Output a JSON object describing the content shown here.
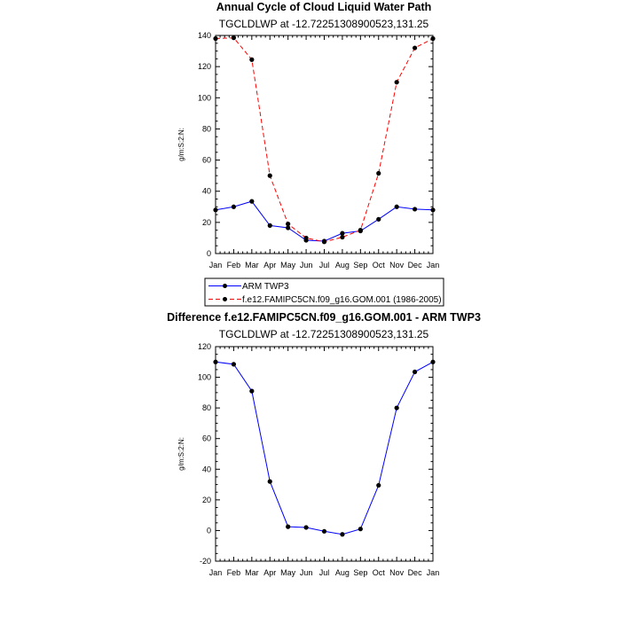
{
  "colors": {
    "series_1": "#0000ff",
    "series_2": "#ff0000",
    "axes": "#000000",
    "markers": "#000000"
  },
  "legend": {
    "entries": [
      "ARM TWP3",
      "f.e12.FAMIPC5CN.f09_g16.GOM.001 (1986-2005)"
    ]
  },
  "chart_data": [
    {
      "type": "line",
      "title": "Annual Cycle of Cloud Liquid Water Path",
      "subtitle": "TGCLDLWP at -12.72251308900523,131.25",
      "xlabel": "",
      "ylabel": "g/m:S:2:N:",
      "categories": [
        "Jan",
        "Feb",
        "Mar",
        "Apr",
        "May",
        "Jun",
        "Jul",
        "Aug",
        "Sep",
        "Oct",
        "Nov",
        "Dec",
        "Jan"
      ],
      "ylim": [
        0,
        140
      ],
      "yticks": [
        "0",
        "20",
        "40",
        "60",
        "80",
        "100",
        "120",
        "140"
      ],
      "grid": false,
      "legend_position": "below",
      "series": [
        {
          "name": "ARM TWP3",
          "style": "solid",
          "values": [
            28,
            30,
            33.5,
            18,
            16.5,
            8.5,
            8,
            13,
            14.5,
            22,
            30,
            28.5,
            28
          ]
        },
        {
          "name": "f.e12.FAMIPC5CN.f09_g16.GOM.001 (1986-2005)",
          "style": "dashed",
          "values": [
            138,
            138.5,
            124.5,
            50,
            19,
            10,
            7.5,
            10.5,
            15,
            51.5,
            110,
            132,
            138
          ]
        }
      ]
    },
    {
      "type": "line",
      "title": "Difference f.e12.FAMIPC5CN.f09_g16.GOM.001 - ARM TWP3",
      "subtitle": "TGCLDLWP at -12.72251308900523,131.25",
      "xlabel": "",
      "ylabel": "g/m:S:2:N:",
      "categories": [
        "Jan",
        "Feb",
        "Mar",
        "Apr",
        "May",
        "Jun",
        "Jul",
        "Aug",
        "Sep",
        "Oct",
        "Nov",
        "Dec",
        "Jan"
      ],
      "ylim": [
        -20,
        120
      ],
      "yticks": [
        "-20",
        "0",
        "20",
        "40",
        "60",
        "80",
        "100",
        "120"
      ],
      "grid": false,
      "series": [
        {
          "style": "solid",
          "values": [
            110,
            108.5,
            91,
            32,
            2.5,
            2,
            -0.5,
            -2.5,
            1,
            29.5,
            80,
            103.5,
            110
          ]
        }
      ]
    }
  ]
}
